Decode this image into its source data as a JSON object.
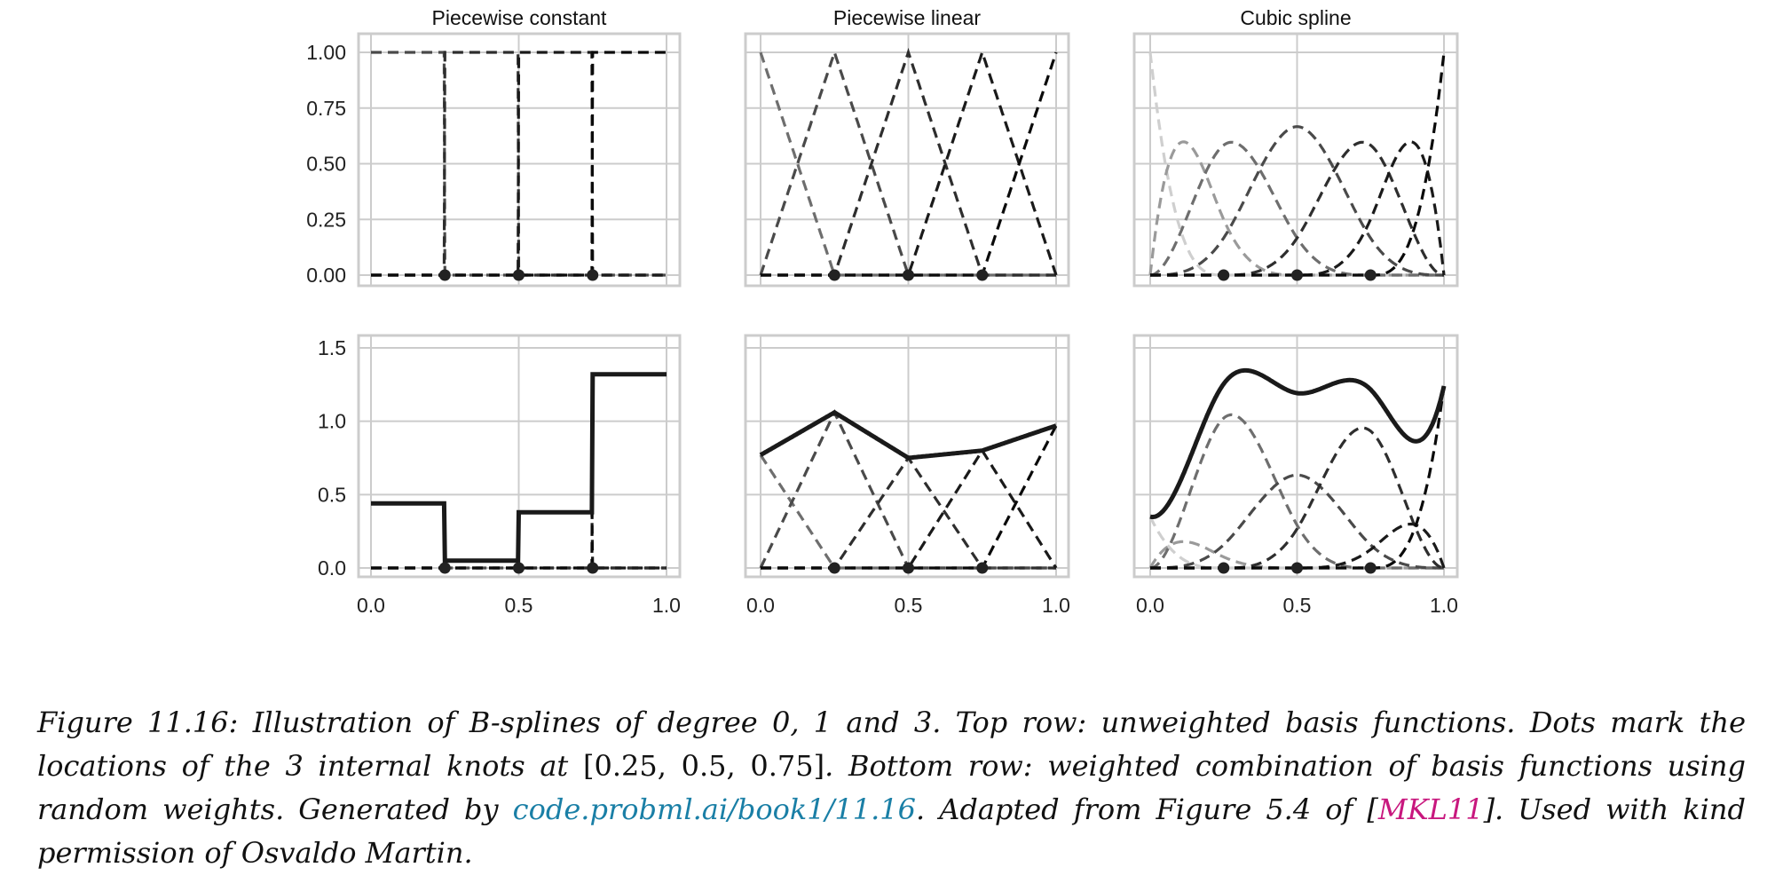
{
  "chart_data": [
    {
      "type": "line",
      "title": "Piecewise constant",
      "row": "top",
      "degree": 0,
      "ylim": [
        0,
        1
      ],
      "xlim": [
        0,
        1
      ],
      "yticks": [
        "0.00",
        "0.25",
        "0.50",
        "0.75",
        "1.00"
      ],
      "xticks": [
        "0.0",
        "0.5",
        "1.0"
      ],
      "knots": [
        0.25,
        0.5,
        0.75
      ],
      "basis": "unweighted"
    },
    {
      "type": "line",
      "title": "Piecewise linear",
      "row": "top",
      "degree": 1,
      "ylim": [
        0,
        1
      ],
      "xlim": [
        0,
        1
      ],
      "yticks": [
        "0.00",
        "0.25",
        "0.50",
        "0.75",
        "1.00"
      ],
      "xticks": [
        "0.0",
        "0.5",
        "1.0"
      ],
      "knots": [
        0.25,
        0.5,
        0.75
      ],
      "basis": "unweighted"
    },
    {
      "type": "line",
      "title": "Cubic spline",
      "row": "top",
      "degree": 3,
      "ylim": [
        0,
        1
      ],
      "xlim": [
        0,
        1
      ],
      "yticks": [
        "0.00",
        "0.25",
        "0.50",
        "0.75",
        "1.00"
      ],
      "xticks": [
        "0.0",
        "0.5",
        "1.0"
      ],
      "knots": [
        0.25,
        0.5,
        0.75
      ],
      "basis": "unweighted"
    },
    {
      "type": "line",
      "title": "",
      "row": "bottom",
      "degree": 0,
      "ylim": [
        0,
        1.5
      ],
      "xlim": [
        0,
        1
      ],
      "yticks": [
        "0.0",
        "0.5",
        "1.0",
        "1.5"
      ],
      "xticks": [
        "0.0",
        "0.5",
        "1.0"
      ],
      "knots": [
        0.25,
        0.5,
        0.75
      ],
      "weights": [
        0.44,
        0.05,
        0.38,
        1.32
      ]
    },
    {
      "type": "line",
      "title": "",
      "row": "bottom",
      "degree": 1,
      "ylim": [
        0,
        1.5
      ],
      "xlim": [
        0,
        1
      ],
      "yticks": [
        "0.0",
        "0.5",
        "1.0",
        "1.5"
      ],
      "xticks": [
        "0.0",
        "0.5",
        "1.0"
      ],
      "knots": [
        0.25,
        0.5,
        0.75
      ],
      "weights": [
        0.77,
        1.06,
        0.75,
        0.8,
        0.97
      ]
    },
    {
      "type": "line",
      "title": "",
      "row": "bottom",
      "degree": 3,
      "ylim": [
        0,
        1.5
      ],
      "xlim": [
        0,
        1
      ],
      "yticks": [
        "0.0",
        "0.5",
        "1.0",
        "1.5"
      ],
      "xticks": [
        "0.0",
        "0.5",
        "1.0"
      ],
      "knots": [
        0.25,
        0.5,
        0.75
      ],
      "weights": [
        0.35,
        0.3,
        1.75,
        0.95,
        1.6,
        0.5,
        1.24
      ]
    }
  ],
  "caption": {
    "lead": "Figure 11.16: Illustration of B-splines of degree 0, 1 and 3. Top row: unweighted basis functions. Dots mark the locations of the 3 internal knots at ",
    "knots_math": "[0.25, 0.5, 0.75]",
    "mid": ". Bottom row: weighted combination of basis functions using random weights. Generated by ",
    "link": "code.probml.ai/book1/11.16",
    "adapted": ". Adapted from Figure 5.4 of [",
    "cite": "MKL11",
    "tail": "]. Used with kind permission of Osvaldo Martin."
  },
  "colors": {
    "frame": "#cccccc",
    "grid": "#cccccc",
    "curve": "#1a1a1a",
    "basis": [
      "#cfcfcf",
      "#9a9a9a",
      "#6e6e6e",
      "#4a4a4a",
      "#2e2e2e",
      "#1a1a1a",
      "#0a0a0a"
    ]
  }
}
